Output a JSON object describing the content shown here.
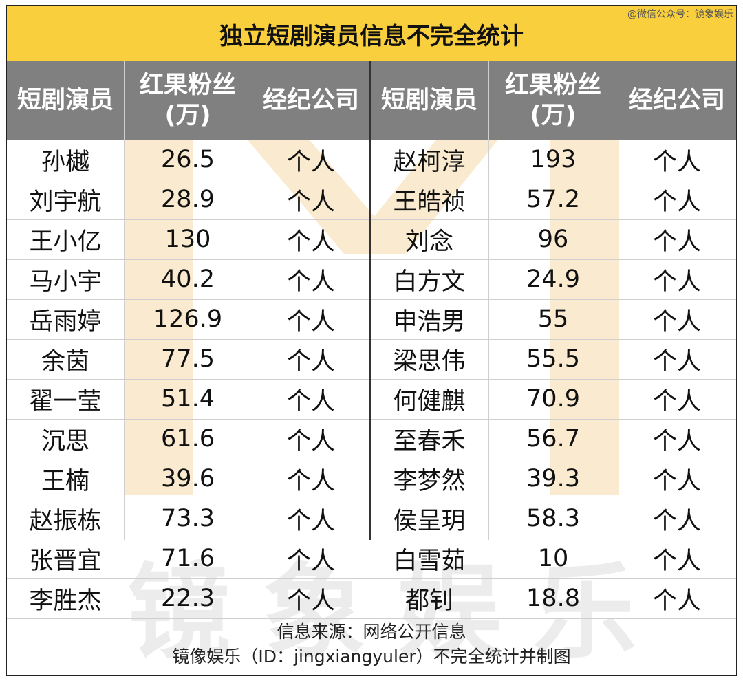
{
  "credit": "@微信公众号：镜象娱乐",
  "title": "独立短剧演员信息不完全统计",
  "headers": {
    "actor": "短剧演员",
    "fans_line1": "红果粉丝",
    "fans_line2": "(万)",
    "agency": "经纪公司"
  },
  "watermark": {
    "letters": [
      "镜",
      "象",
      "娱",
      "乐"
    ]
  },
  "chart_data": {
    "type": "table",
    "title": "独立短剧演员信息不完全统计",
    "columns": [
      "短剧演员",
      "红果粉丝(万)",
      "经纪公司"
    ],
    "left": [
      {
        "name": "孙樾",
        "fans": "26.5",
        "agency": "个人"
      },
      {
        "name": "刘宇航",
        "fans": "28.9",
        "agency": "个人"
      },
      {
        "name": "王小亿",
        "fans": "130",
        "agency": "个人"
      },
      {
        "name": "马小宇",
        "fans": "40.2",
        "agency": "个人"
      },
      {
        "name": "岳雨婷",
        "fans": "126.9",
        "agency": "个人"
      },
      {
        "name": "余茵",
        "fans": "77.5",
        "agency": "个人"
      },
      {
        "name": "翟一莹",
        "fans": "51.4",
        "agency": "个人"
      },
      {
        "name": "沉思",
        "fans": "61.6",
        "agency": "个人"
      },
      {
        "name": "王楠",
        "fans": "39.6",
        "agency": "个人"
      },
      {
        "name": "赵振栋",
        "fans": "73.3",
        "agency": "个人"
      },
      {
        "name": "张晋宜",
        "fans": "71.6",
        "agency": "个人"
      },
      {
        "name": "李胜杰",
        "fans": "22.3",
        "agency": "个人"
      }
    ],
    "right": [
      {
        "name": "赵柯淳",
        "fans": "193",
        "agency": "个人"
      },
      {
        "name": "王皓祯",
        "fans": "57.2",
        "agency": "个人"
      },
      {
        "name": "刘念",
        "fans": "96",
        "agency": "个人"
      },
      {
        "name": "白方文",
        "fans": "24.9",
        "agency": "个人"
      },
      {
        "name": "申浩男",
        "fans": "55",
        "agency": "个人"
      },
      {
        "name": "梁思伟",
        "fans": "55.5",
        "agency": "个人"
      },
      {
        "name": "何健麒",
        "fans": "70.9",
        "agency": "个人"
      },
      {
        "name": "至春禾",
        "fans": "56.7",
        "agency": "个人"
      },
      {
        "name": "李梦然",
        "fans": "39.3",
        "agency": "个人"
      },
      {
        "name": "侯呈玥",
        "fans": "58.3",
        "agency": "个人"
      },
      {
        "name": "白雪茹",
        "fans": "10",
        "agency": "个人"
      },
      {
        "name": "都钊",
        "fans": "18.8",
        "agency": "个人"
      }
    ]
  },
  "footer": {
    "line1": "信息来源：网络公开信息",
    "line2": "镜像娱乐（ID：jingxiangyuler）不完全统计并制图"
  },
  "colors": {
    "title_bg": "#f9cf3e",
    "header_bg": "#808080",
    "watermark_orange": "#f6d9a8",
    "watermark_gray": "#969696"
  }
}
